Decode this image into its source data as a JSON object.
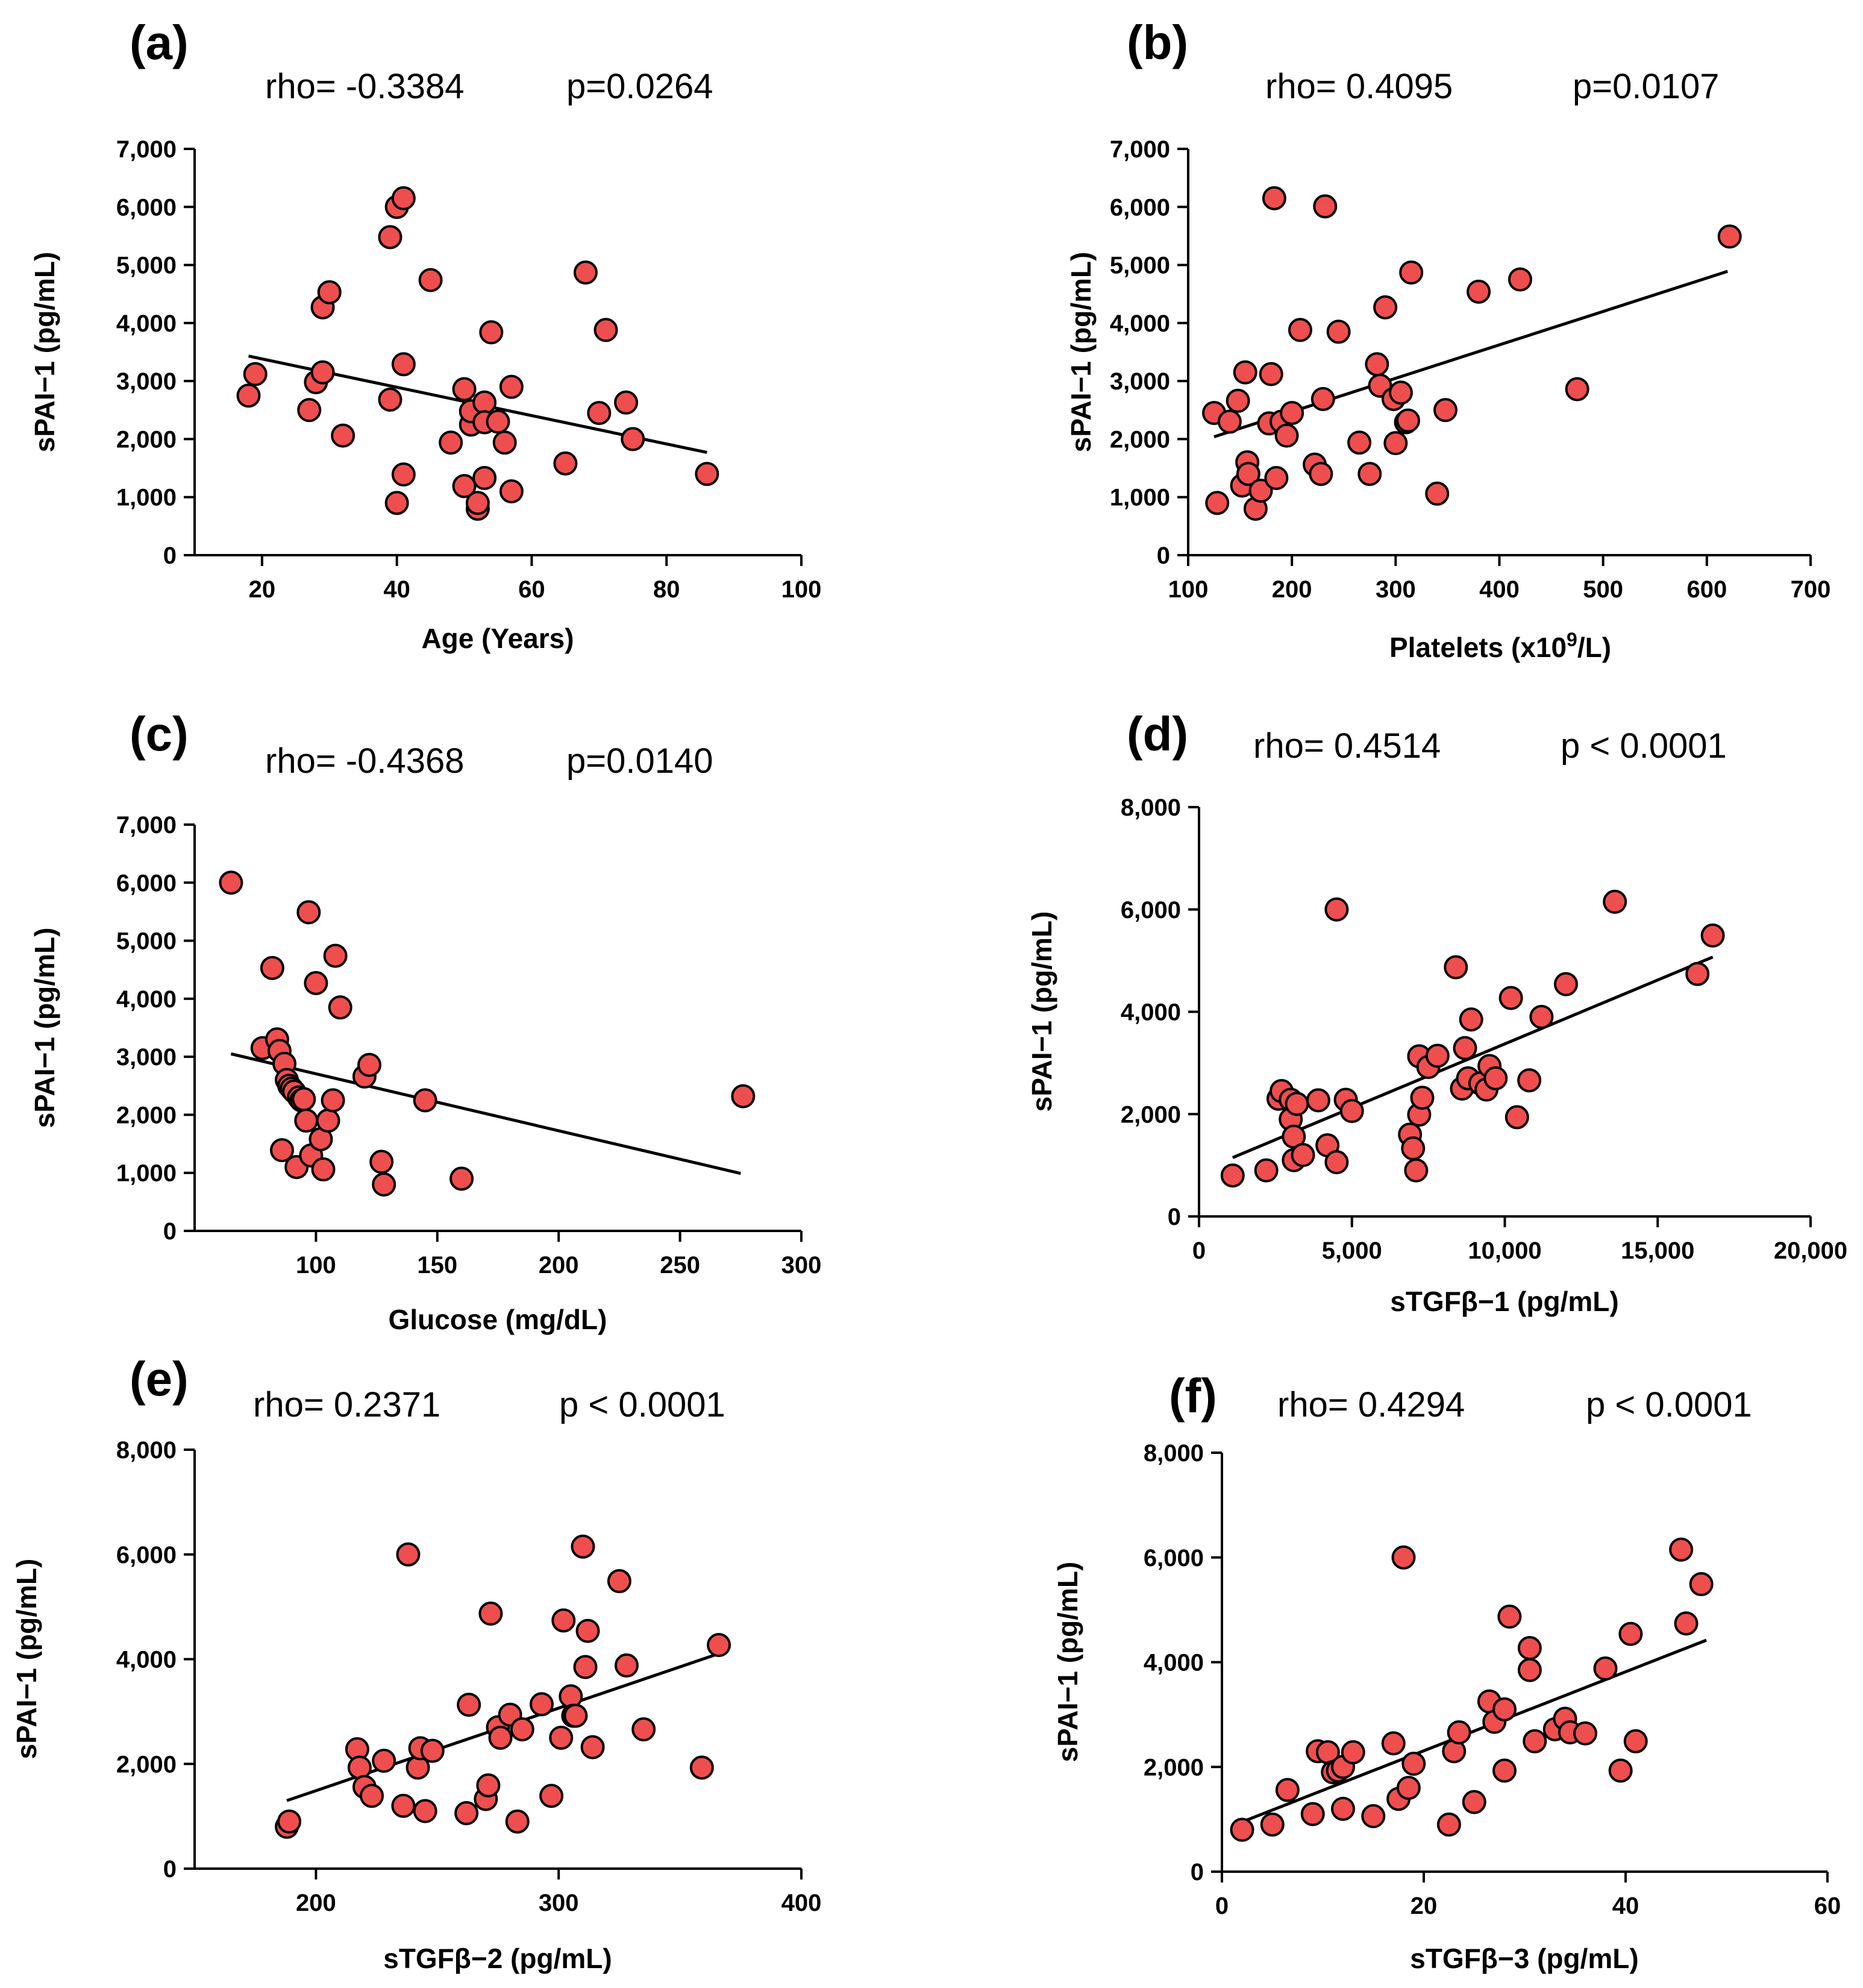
{
  "chart_data": [
    {
      "panel": "(a)",
      "type": "scatter",
      "rho": "rho= -0.3384",
      "p": "p=0.0264",
      "xlabel": "Age (Years)",
      "ylabel": "sPAI−1 (pg/mL)",
      "xlim": [
        10,
        100
      ],
      "xticks": [
        20,
        40,
        60,
        80,
        100
      ],
      "xticklabels": [
        "20",
        "40",
        "60",
        "80",
        "100"
      ],
      "ylim": [
        0,
        7000
      ],
      "yticks": [
        0,
        1000,
        2000,
        3000,
        4000,
        5000,
        6000,
        7000
      ],
      "yticklabels": [
        "0",
        "1,000",
        "2,000",
        "3,000",
        "4,000",
        "5,000",
        "6,000",
        "7,000"
      ],
      "fit": {
        "x": [
          18,
          86
        ],
        "y": [
          3430,
          1770
        ]
      },
      "marker_color": "#ef4e4e",
      "x": [
        18,
        19,
        27,
        28,
        29,
        29,
        30,
        32,
        39,
        39,
        40,
        40,
        41,
        41,
        41,
        45,
        48,
        50,
        50,
        51,
        51,
        52,
        52,
        53,
        53,
        53,
        54,
        55,
        56,
        57,
        57,
        65,
        68,
        70,
        71,
        74,
        75,
        86
      ],
      "y": [
        2750,
        3120,
        2500,
        2980,
        4270,
        3150,
        4530,
        2060,
        5480,
        2680,
        6000,
        900,
        6150,
        3290,
        1390,
        4740,
        1940,
        2860,
        1190,
        2250,
        2480,
        800,
        900,
        2630,
        1330,
        2290,
        3840,
        2300,
        1940,
        1100,
        2900,
        1580,
        4870,
        2450,
        3880,
        2630,
        2000,
        1400
      ]
    },
    {
      "panel": "(b)",
      "type": "scatter",
      "rho": "rho= 0.4095",
      "p": "p=0.0107",
      "xlabel": "Platelets (x10",
      "xlabel_sup": "9",
      "xlabel_tail": "/L)",
      "ylabel": "sPAI−1 (pg/mL)",
      "xlim": [
        100,
        700
      ],
      "xticks": [
        100,
        200,
        300,
        400,
        500,
        600,
        700
      ],
      "xticklabels": [
        "100",
        "200",
        "300",
        "400",
        "500",
        "600",
        "700"
      ],
      "ylim": [
        0,
        7000
      ],
      "yticks": [
        0,
        1000,
        2000,
        3000,
        4000,
        5000,
        6000,
        7000
      ],
      "yticklabels": [
        "0",
        "1,000",
        "2,000",
        "3,000",
        "4,000",
        "5,000",
        "6,000",
        "7,000"
      ],
      "fit": {
        "x": [
          125,
          620
        ],
        "y": [
          2040,
          4890
        ]
      },
      "marker_color": "#ef4e4e",
      "x": [
        125,
        128,
        140,
        148,
        152,
        155,
        157,
        158,
        165,
        170,
        178,
        180,
        183,
        185,
        190,
        195,
        200,
        208,
        222,
        228,
        230,
        232,
        245,
        265,
        275,
        282,
        285,
        290,
        298,
        300,
        305,
        310,
        312,
        315,
        340,
        348,
        380,
        420,
        475,
        622
      ],
      "y": [
        2450,
        900,
        2300,
        2660,
        1200,
        3150,
        1600,
        1400,
        800,
        1110,
        2270,
        3120,
        6150,
        1330,
        2300,
        2060,
        2450,
        3880,
        1560,
        1400,
        2690,
        6010,
        3850,
        1940,
        1400,
        3290,
        2920,
        4270,
        2690,
        1930,
        2800,
        2290,
        2320,
        4870,
        1060,
        2500,
        4540,
        4750,
        2860,
        5490
      ]
    },
    {
      "panel": "(c)",
      "type": "scatter",
      "rho": "rho= -0.4368",
      "p": "p=0.0140",
      "xlabel": "Glucose (mg/dL)",
      "ylabel": "sPAI−1 (pg/mL)",
      "xlim": [
        50,
        300
      ],
      "xticks": [
        100,
        150,
        200,
        250,
        300
      ],
      "xticklabels": [
        "100",
        "150",
        "200",
        "250",
        "300"
      ],
      "ylim": [
        0,
        7000
      ],
      "yticks": [
        0,
        1000,
        2000,
        3000,
        4000,
        5000,
        6000,
        7000
      ],
      "yticklabels": [
        "0",
        "1,000",
        "2,000",
        "3,000",
        "4,000",
        "5,000",
        "6,000",
        "7,000"
      ],
      "fit": {
        "x": [
          65,
          275
        ],
        "y": [
          3050,
          990
        ]
      },
      "marker_color": "#ef4e4e",
      "x": [
        65,
        78,
        82,
        84,
        85,
        86,
        87,
        88,
        89,
        90,
        91,
        92,
        93,
        94,
        95,
        96,
        97,
        98,
        100,
        102,
        103,
        105,
        107,
        108,
        110,
        120,
        122,
        127,
        128,
        145,
        160,
        276
      ],
      "y": [
        6000,
        3150,
        4530,
        3300,
        3100,
        1390,
        2880,
        2600,
        2500,
        2450,
        2400,
        1100,
        2300,
        2250,
        2270,
        1900,
        5490,
        1300,
        4270,
        1580,
        1060,
        1900,
        2250,
        4740,
        3850,
        2660,
        2860,
        1190,
        800,
        2250,
        900,
        2320
      ]
    },
    {
      "panel": "(d)",
      "type": "scatter",
      "rho": "rho= 0.4514",
      "p": "p < 0.0001",
      "xlabel": "sTGFβ−1 (pg/mL)",
      "ylabel": "sPAI−1 (pg/mL)",
      "xlim": [
        0,
        20000
      ],
      "xticks": [
        0,
        5000,
        10000,
        15000,
        20000
      ],
      "xticklabels": [
        "0",
        "5,000",
        "10,000",
        "15,000",
        "20,000"
      ],
      "ylim": [
        0,
        8000
      ],
      "yticks": [
        0,
        2000,
        4000,
        6000,
        8000
      ],
      "yticklabels": [
        "0",
        "2,000",
        "4,000",
        "6,000",
        "8,000"
      ],
      "fit": {
        "x": [
          1100,
          16800
        ],
        "y": [
          1150,
          5070
        ]
      },
      "marker_color": "#ef4e4e",
      "x": [
        1100,
        2200,
        2600,
        2700,
        3000,
        3000,
        3100,
        3100,
        3200,
        3400,
        3900,
        4200,
        4500,
        4500,
        4800,
        5000,
        6900,
        7000,
        7100,
        7200,
        7200,
        7300,
        7500,
        7800,
        8400,
        8600,
        8700,
        8800,
        8900,
        9200,
        9400,
        9500,
        9700,
        10200,
        10400,
        10800,
        11200,
        12000,
        13600,
        16300,
        16800
      ],
      "y": [
        800,
        900,
        2300,
        2450,
        2280,
        1900,
        1560,
        1100,
        2200,
        1200,
        2270,
        1390,
        1060,
        6000,
        2280,
        2060,
        1600,
        1330,
        900,
        3130,
        1990,
        2320,
        2920,
        3140,
        4870,
        2500,
        3290,
        2700,
        3850,
        2600,
        2480,
        2940,
        2700,
        4270,
        1940,
        2660,
        3900,
        4540,
        6150,
        4740,
        5490
      ]
    },
    {
      "panel": "(e)",
      "type": "scatter",
      "rho": "rho= 0.2371",
      "p": "p < 0.0001",
      "xlabel": "sTGFβ−2 (pg/mL)",
      "ylabel": "sPAI−1 (pg/mL)",
      "xlim": [
        150,
        400
      ],
      "xticks": [
        200,
        300,
        400
      ],
      "xticklabels": [
        "200",
        "300",
        "400"
      ],
      "ylim": [
        0,
        8000
      ],
      "yticks": [
        0,
        2000,
        4000,
        6000,
        8000
      ],
      "yticklabels": [
        "0",
        "2,000",
        "4,000",
        "6,000",
        "8,000"
      ],
      "fit": {
        "x": [
          188,
          365
        ],
        "y": [
          1300,
          4090
        ]
      },
      "marker_color": "#ef4e4e",
      "x": [
        188,
        189,
        217,
        218,
        220,
        223,
        228,
        236,
        238,
        242,
        243,
        245,
        248,
        262,
        263,
        270,
        271,
        272,
        275,
        276,
        280,
        283,
        285,
        293,
        297,
        301,
        302,
        305,
        306,
        307,
        310,
        311,
        312,
        314,
        325,
        328,
        335,
        359,
        366
      ],
      "y": [
        800,
        900,
        2280,
        1930,
        1560,
        1390,
        2060,
        1200,
        6000,
        1930,
        2300,
        1100,
        2250,
        1060,
        3130,
        1330,
        1590,
        4870,
        2700,
        2500,
        2940,
        900,
        2660,
        3140,
        1390,
        2500,
        4740,
        3290,
        2920,
        2920,
        6150,
        3850,
        4540,
        2320,
        5490,
        3880,
        2660,
        1930,
        4270
      ]
    },
    {
      "panel": "(f)",
      "type": "scatter",
      "rho": "rho= 0.4294",
      "p": "p < 0.0001",
      "xlabel": "sTGFβ−3 (pg/mL)",
      "ylabel": "sPAI−1 (pg/mL)",
      "xlim": [
        0,
        60
      ],
      "xticks": [
        0,
        20,
        40,
        60
      ],
      "xticklabels": [
        "0",
        "20",
        "40",
        "60"
      ],
      "ylim": [
        0,
        8000
      ],
      "yticks": [
        0,
        2000,
        4000,
        6000,
        8000
      ],
      "yticklabels": [
        "0",
        "2,000",
        "4,000",
        "6,000",
        "8,000"
      ],
      "fit": {
        "x": [
          2,
          48
        ],
        "y": [
          950,
          4420
        ]
      },
      "marker_color": "#ef4e4e",
      "x": [
        2,
        5,
        6.5,
        9,
        9.5,
        10.5,
        11,
        11.5,
        12,
        12,
        13,
        15,
        17,
        17.5,
        18,
        18.5,
        19,
        22.5,
        23,
        23.5,
        25,
        26.5,
        27,
        28,
        28,
        28.5,
        30.5,
        30.5,
        31,
        33,
        34,
        34.5,
        36,
        38,
        39.5,
        40.5,
        41,
        45.5,
        46,
        47.5
      ],
      "y": [
        800,
        900,
        1560,
        1100,
        2300,
        2280,
        1900,
        1930,
        1200,
        2000,
        2280,
        1060,
        2450,
        1390,
        6000,
        1600,
        2060,
        900,
        2300,
        2660,
        1330,
        3250,
        2860,
        1930,
        3100,
        4870,
        4270,
        3850,
        2490,
        2720,
        2920,
        2660,
        2640,
        3880,
        1930,
        4540,
        2490,
        6150,
        4740,
        5490
      ]
    }
  ]
}
